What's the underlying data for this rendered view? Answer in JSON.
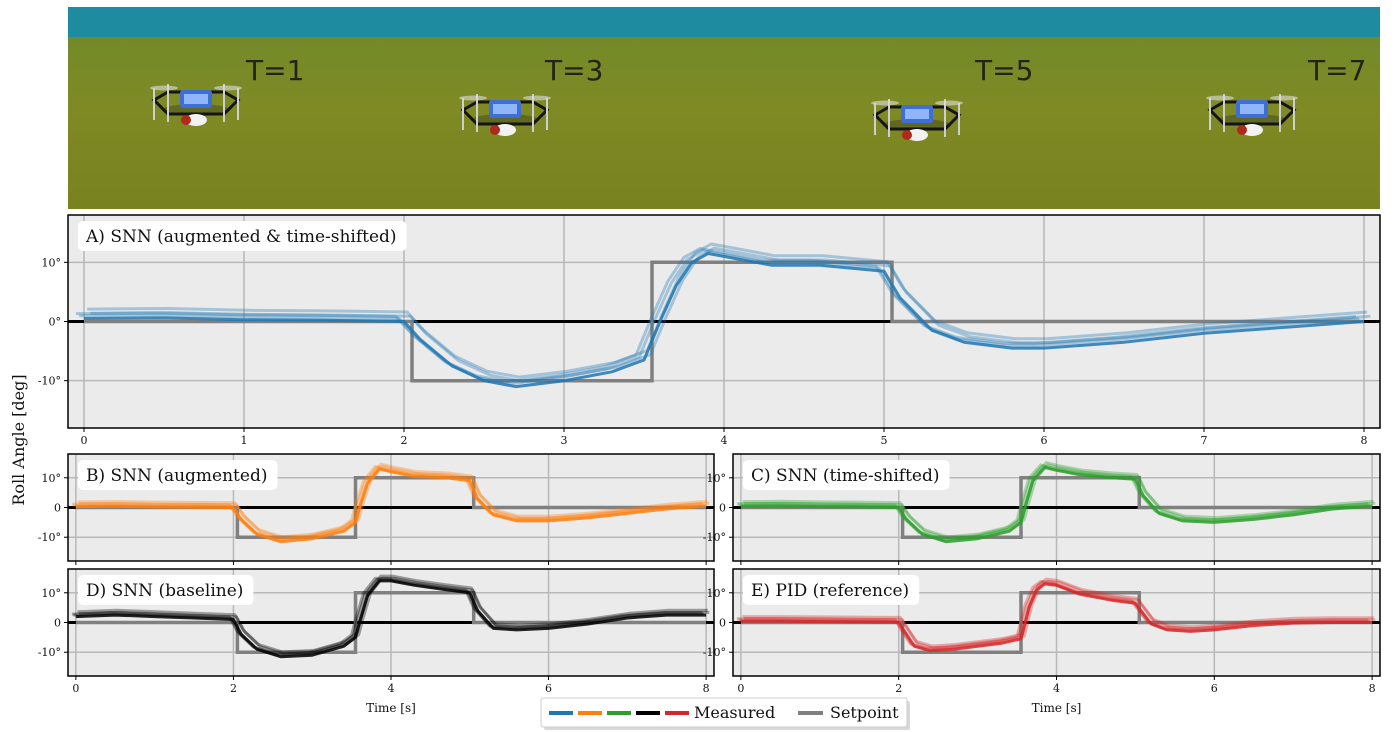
{
  "photo": {
    "labels": [
      "T=1",
      "T=3",
      "T=5",
      "T=7"
    ],
    "colors": {
      "sky": "#1f8ba0",
      "grass": "#7f8a25"
    }
  },
  "ylabel": "Roll Angle [deg]",
  "legend": {
    "measured_label": "Measured",
    "setpoint_label": "Setpoint",
    "measured_colors": [
      "#1f77b4",
      "#ff7f0e",
      "#2ca02c",
      "#000000",
      "#d62728"
    ],
    "setpoint_color": "#808080"
  },
  "chart_data": [
    {
      "id": "A",
      "type": "line",
      "title": "A) SNN (augmented & time-shifted)",
      "xlim": [
        -0.1,
        8.1
      ],
      "ylim": [
        -18,
        18
      ],
      "xticks": [
        "0",
        "1",
        "2",
        "3",
        "4",
        "5",
        "6",
        "7",
        "8"
      ],
      "yticks": [
        "10°",
        "0°",
        "-10°"
      ],
      "xlabel": "",
      "grid": true,
      "color": "#1f77b4",
      "setpoint": {
        "x": [
          0,
          2.05,
          2.05,
          3.55,
          3.55,
          5.05,
          5.05,
          8.0
        ],
        "y": [
          0,
          0,
          -10,
          -10,
          10,
          10,
          0,
          0
        ]
      },
      "measured": {
        "x": [
          0,
          0.5,
          1.0,
          1.5,
          2.0,
          2.1,
          2.3,
          2.5,
          2.7,
          3.0,
          3.3,
          3.5,
          3.6,
          3.7,
          3.8,
          3.9,
          4.0,
          4.3,
          4.6,
          5.0,
          5.1,
          5.3,
          5.5,
          5.8,
          6.0,
          6.5,
          7.0,
          7.5,
          8.0
        ],
        "y": [
          0.5,
          0.6,
          0.3,
          0.2,
          0,
          -3,
          -7.5,
          -10,
          -11,
          -10,
          -8.5,
          -6.5,
          0,
          6,
          10,
          11.5,
          11,
          9.5,
          9.5,
          8.5,
          4,
          -1.5,
          -3.5,
          -4.5,
          -4.5,
          -3.5,
          -2,
          -1,
          0
        ]
      }
    },
    {
      "id": "B",
      "type": "line",
      "title": "B) SNN (augmented)",
      "xlim": [
        -0.1,
        8.1
      ],
      "ylim": [
        -18,
        18
      ],
      "xticks": [],
      "yticks": [
        "10°",
        "0",
        "-10°"
      ],
      "xlabel": "",
      "grid": true,
      "color": "#ff7f0e",
      "setpoint": {
        "x": [
          0,
          2.05,
          2.05,
          3.55,
          3.55,
          5.05,
          5.05,
          8.0
        ],
        "y": [
          0,
          0,
          -10,
          -10,
          10,
          10,
          0,
          0
        ]
      },
      "measured": {
        "x": [
          0,
          0.5,
          1.0,
          1.5,
          2.0,
          2.1,
          2.3,
          2.6,
          3.0,
          3.4,
          3.55,
          3.6,
          3.7,
          3.85,
          4.0,
          4.3,
          4.7,
          5.0,
          5.1,
          5.3,
          5.6,
          6.0,
          6.5,
          7.0,
          7.5,
          8.0
        ],
        "y": [
          0.3,
          0.4,
          0.2,
          0.1,
          0,
          -4,
          -9,
          -11.5,
          -10.5,
          -8,
          -5,
          0,
          8,
          13,
          12,
          10.5,
          10,
          9,
          3,
          -2.5,
          -4.5,
          -4.5,
          -3.5,
          -2,
          -0.5,
          0.5
        ]
      }
    },
    {
      "id": "C",
      "type": "line",
      "title": "C) SNN (time-shifted)",
      "xlim": [
        -0.1,
        8.1
      ],
      "ylim": [
        -18,
        18
      ],
      "xticks": [],
      "yticks": [
        "10°",
        "0",
        "-10°"
      ],
      "xlabel": "",
      "grid": true,
      "color": "#2ca02c",
      "setpoint": {
        "x": [
          0,
          2.05,
          2.05,
          3.55,
          3.55,
          5.05,
          5.05,
          8.0
        ],
        "y": [
          0,
          0,
          -10,
          -10,
          10,
          10,
          0,
          0
        ]
      },
      "measured": {
        "x": [
          0,
          0.5,
          1.0,
          1.5,
          2.0,
          2.1,
          2.3,
          2.6,
          3.0,
          3.4,
          3.55,
          3.6,
          3.7,
          3.85,
          4.0,
          4.3,
          4.7,
          5.0,
          5.1,
          5.3,
          5.6,
          6.0,
          6.5,
          7.0,
          7.5,
          8.0
        ],
        "y": [
          0.4,
          0.5,
          0.3,
          0.2,
          0,
          -4,
          -9,
          -11.5,
          -10.5,
          -8,
          -5,
          0,
          9,
          13.5,
          12.5,
          11,
          10,
          9.5,
          4,
          -2,
          -4.5,
          -5,
          -4,
          -2.5,
          -0.5,
          0.5
        ]
      }
    },
    {
      "id": "D",
      "type": "line",
      "title": "D) SNN (baseline)",
      "xlim": [
        -0.1,
        8.1
      ],
      "ylim": [
        -18,
        18
      ],
      "xticks": [
        "0",
        "2",
        "4",
        "6",
        "8"
      ],
      "yticks": [
        "10°",
        "0",
        "-10°"
      ],
      "xlabel": "Time [s]",
      "grid": true,
      "color": "#000000",
      "setpoint": {
        "x": [
          0,
          2.05,
          2.05,
          3.55,
          3.55,
          5.05,
          5.05,
          8.0
        ],
        "y": [
          0,
          0,
          -10,
          -10,
          10,
          10,
          0,
          0
        ]
      },
      "measured": {
        "x": [
          0,
          0.5,
          1.0,
          1.5,
          2.0,
          2.1,
          2.3,
          2.6,
          3.0,
          3.4,
          3.55,
          3.6,
          3.7,
          3.85,
          4.0,
          4.3,
          4.7,
          5.0,
          5.1,
          5.3,
          5.6,
          6.0,
          6.5,
          7.0,
          7.5,
          8.0
        ],
        "y": [
          2,
          2.5,
          2,
          1.5,
          1,
          -4,
          -9,
          -11.5,
          -11,
          -8,
          -5,
          0,
          9,
          14,
          14,
          12.5,
          11,
          10,
          4,
          -2,
          -2.5,
          -2,
          -0.5,
          1.5,
          2.5,
          2.5
        ]
      }
    },
    {
      "id": "E",
      "type": "line",
      "title": "E) PID (reference)",
      "xlim": [
        -0.1,
        8.1
      ],
      "ylim": [
        -18,
        18
      ],
      "xticks": [
        "0",
        "2",
        "4",
        "6",
        "8"
      ],
      "yticks": [
        "10°",
        "0",
        "-10°"
      ],
      "xlabel": "Time [s]",
      "grid": true,
      "color": "#d62728",
      "setpoint": {
        "x": [
          0,
          2.05,
          2.05,
          3.55,
          3.55,
          5.05,
          5.05,
          8.0
        ],
        "y": [
          0,
          0,
          -10,
          -10,
          10,
          10,
          0,
          0
        ]
      },
      "measured": {
        "x": [
          0,
          0.5,
          1.0,
          1.5,
          2.0,
          2.1,
          2.2,
          2.4,
          2.7,
          3.0,
          3.3,
          3.55,
          3.65,
          3.75,
          3.85,
          4.0,
          4.3,
          4.7,
          5.0,
          5.1,
          5.2,
          5.4,
          5.7,
          6.0,
          6.5,
          7.0,
          7.5,
          8.0
        ],
        "y": [
          0.4,
          0.4,
          0.3,
          0.2,
          0.1,
          -4,
          -8,
          -9.5,
          -9,
          -8,
          -7,
          -5.5,
          5,
          11,
          13,
          12.5,
          9.5,
          7.5,
          6.5,
          3,
          -0.5,
          -2.5,
          -3,
          -2.5,
          -1,
          -0.2,
          0,
          0
        ]
      }
    }
  ]
}
